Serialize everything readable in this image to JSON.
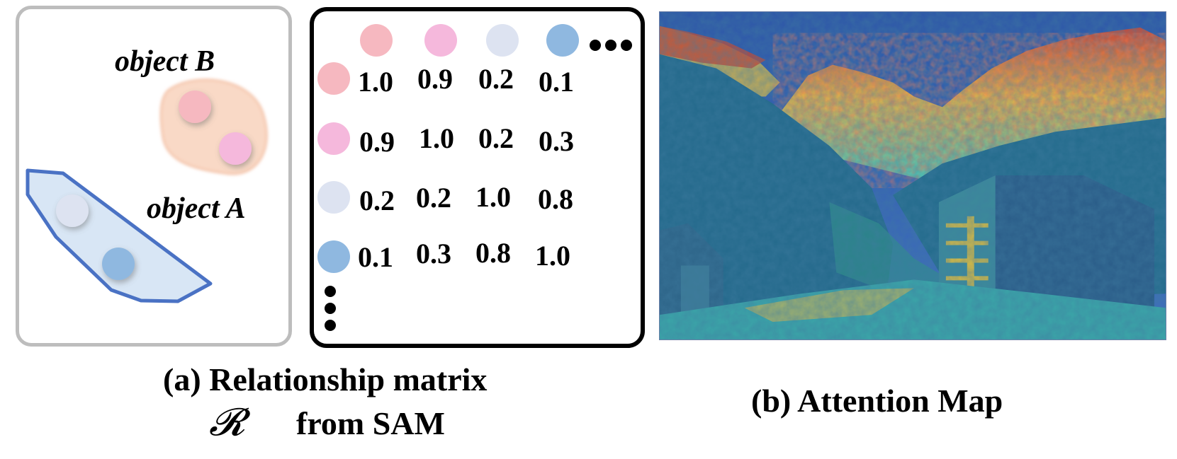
{
  "scene": {
    "object_b_label": "object B",
    "object_a_label": "object A",
    "object_b_region_color": "#f9d9c6",
    "object_a_region_color": "#d8e6f5",
    "object_a_outline_color": "#4a72c4"
  },
  "matrix": {
    "dot_colors": [
      "#f6b8c0",
      "#f5b8dc",
      "#dde3f1",
      "#8fb8e0"
    ],
    "rows": [
      [
        "1.0",
        "0.9",
        "0.2",
        "0.1"
      ],
      [
        "0.9",
        "1.0",
        "0.2",
        "0.3"
      ],
      [
        "0.2",
        "0.2",
        "1.0",
        "0.8"
      ],
      [
        "0.1",
        "0.3",
        "0.8",
        "1.0"
      ]
    ]
  },
  "captions": {
    "a_line1": "(a) Relationship matrix",
    "a_symbol": "𝓡",
    "a_line2": "from SAM",
    "b": "(b) Attention Map"
  }
}
